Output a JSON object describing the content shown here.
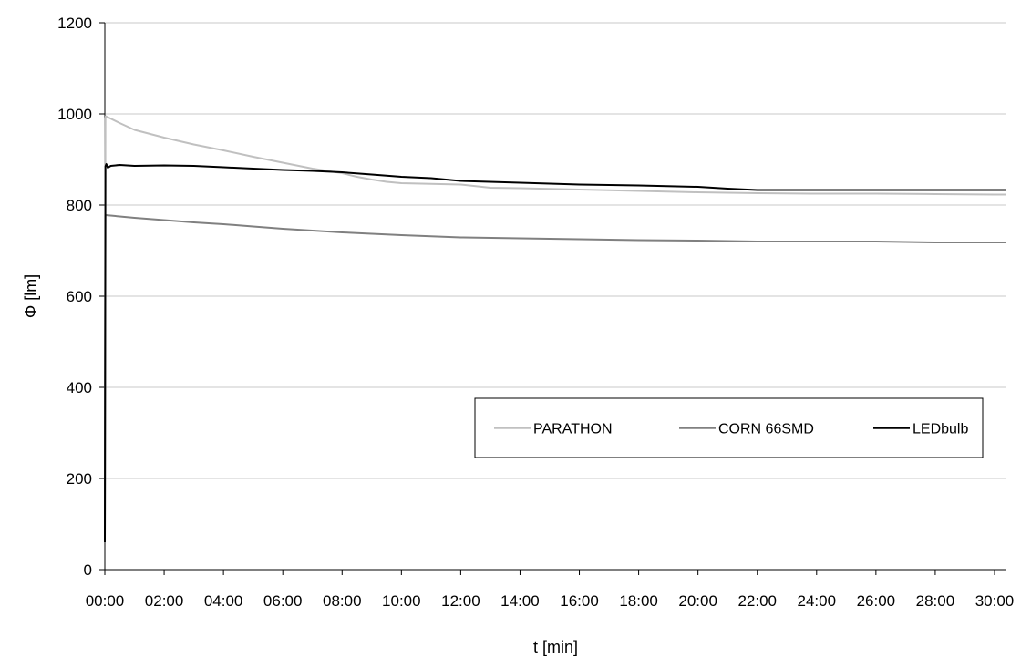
{
  "chart_data": {
    "type": "line",
    "title": "",
    "xlabel": "t [min]",
    "ylabel": "Φ [lm]",
    "xlim": [
      0,
      30.4
    ],
    "ylim": [
      0,
      1200
    ],
    "grid": "horizontal",
    "legend_position": "inside-lower-right",
    "x_ticks": [
      0,
      2,
      4,
      6,
      8,
      10,
      12,
      14,
      16,
      18,
      20,
      22,
      24,
      26,
      28,
      30
    ],
    "x_tick_labels": [
      "00:00",
      "02:00",
      "04:00",
      "06:00",
      "08:00",
      "10:00",
      "12:00",
      "14:00",
      "16:00",
      "18:00",
      "20:00",
      "22:00",
      "24:00",
      "26:00",
      "28:00",
      "30:00"
    ],
    "y_ticks": [
      0,
      200,
      400,
      600,
      800,
      1000,
      1200
    ],
    "y_tick_labels": [
      "0",
      "200",
      "400",
      "600",
      "800",
      "1000",
      "1200"
    ],
    "series": [
      {
        "name": "PARATHON",
        "color": "#c0c0c0",
        "x": [
          0,
          0.02,
          0.03,
          0.5,
          1,
          2,
          3,
          4,
          5,
          6,
          7,
          8,
          8.5,
          9,
          9.5,
          10,
          12,
          13,
          14,
          16,
          18,
          20,
          22,
          24,
          26,
          28,
          30,
          30.4
        ],
        "y": [
          60,
          990,
          995,
          980,
          965,
          948,
          933,
          920,
          906,
          893,
          880,
          870,
          862,
          856,
          851,
          848,
          845,
          838,
          837,
          834,
          831,
          828,
          826,
          825,
          825,
          824,
          823,
          823
        ]
      },
      {
        "name": "CORN 66SMD",
        "color": "#808080",
        "x": [
          0,
          0.02,
          0.03,
          0.5,
          1,
          2,
          3,
          4,
          5,
          6,
          7,
          8,
          9,
          10,
          12,
          14,
          16,
          18,
          20,
          22,
          24,
          26,
          28,
          30,
          30.4
        ],
        "y": [
          60,
          775,
          778,
          775,
          772,
          767,
          762,
          758,
          753,
          748,
          744,
          740,
          737,
          734,
          729,
          727,
          725,
          723,
          722,
          720,
          720,
          720,
          718,
          718,
          718
        ]
      },
      {
        "name": "LEDbulb",
        "color": "#000000",
        "x": [
          0,
          0.02,
          0.05,
          0.1,
          0.2,
          0.5,
          1,
          2,
          3,
          4,
          5,
          6,
          7,
          8,
          9,
          10,
          11,
          12,
          14,
          16,
          18,
          20,
          21,
          22,
          24,
          26,
          28,
          30,
          30.4
        ],
        "y": [
          60,
          885,
          890,
          882,
          886,
          888,
          886,
          887,
          886,
          883,
          880,
          877,
          875,
          872,
          867,
          862,
          859,
          853,
          849,
          845,
          843,
          840,
          836,
          833,
          833,
          833,
          833,
          833,
          833
        ]
      }
    ]
  }
}
